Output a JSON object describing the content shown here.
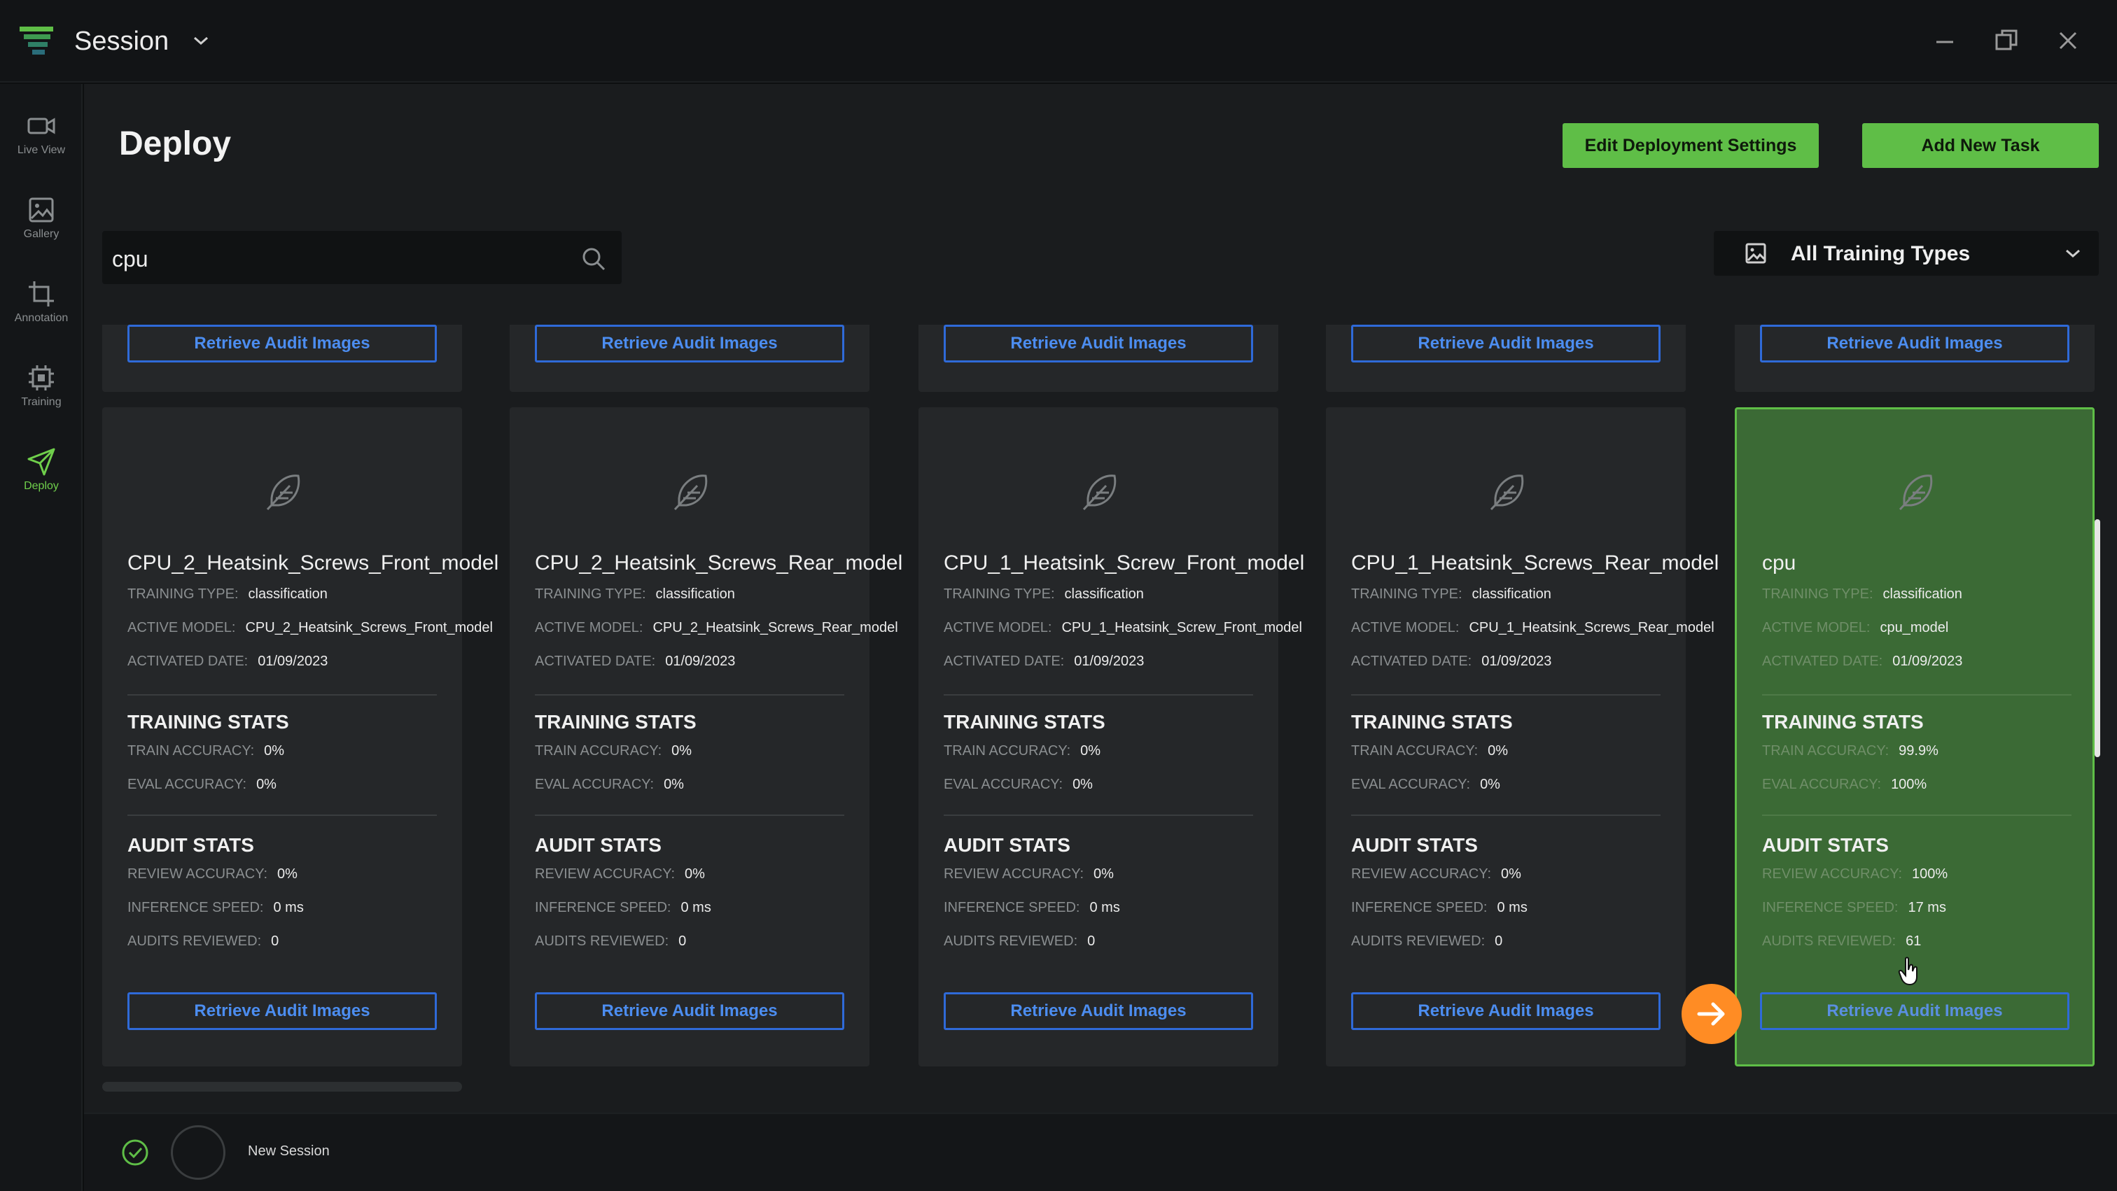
{
  "window": {
    "title": "Session"
  },
  "sidebar": {
    "items": [
      {
        "label": "Live View",
        "icon": "video-camera-icon"
      },
      {
        "label": "Gallery",
        "icon": "image-icon"
      },
      {
        "label": "Annotation",
        "icon": "crop-icon"
      },
      {
        "label": "Training",
        "icon": "chip-icon"
      },
      {
        "label": "Deploy",
        "icon": "send-icon",
        "active": true
      }
    ]
  },
  "header": {
    "title": "Deploy",
    "edit_button": "Edit Deployment Settings",
    "add_button": "Add New Task"
  },
  "filters": {
    "search_value": "cpu",
    "training_type": "All Training Types"
  },
  "labels": {
    "training_type": "TRAINING TYPE:",
    "active_model": "ACTIVE MODEL:",
    "activated_date": "ACTIVATED DATE:",
    "training_stats": "TRAINING STATS",
    "train_accuracy": "TRAIN ACCURACY:",
    "eval_accuracy": "EVAL ACCURACY:",
    "audit_stats": "AUDIT STATS",
    "review_accuracy": "REVIEW ACCURACY:",
    "inference_speed": "INFERENCE SPEED:",
    "audits_reviewed": "AUDITS REVIEWED:",
    "retrieve_button": "Retrieve Audit Images"
  },
  "cards": [
    {
      "name": "CPU_2_Heatsink_Screws_Front_model",
      "training_type": "classification",
      "active_model": "CPU_2_Heatsink_Screws_Front_model",
      "activated_date": "01/09/2023",
      "train_accuracy": "0%",
      "eval_accuracy": "0%",
      "review_accuracy": "0%",
      "inference_speed": "0 ms",
      "audits_reviewed": "0"
    },
    {
      "name": "CPU_2_Heatsink_Screws_Rear_model",
      "training_type": "classification",
      "active_model": "CPU_2_Heatsink_Screws_Rear_model",
      "activated_date": "01/09/2023",
      "train_accuracy": "0%",
      "eval_accuracy": "0%",
      "review_accuracy": "0%",
      "inference_speed": "0 ms",
      "audits_reviewed": "0"
    },
    {
      "name": "CPU_1_Heatsink_Screw_Front_model",
      "training_type": "classification",
      "active_model": "CPU_1_Heatsink_Screw_Front_model",
      "activated_date": "01/09/2023",
      "train_accuracy": "0%",
      "eval_accuracy": "0%",
      "review_accuracy": "0%",
      "inference_speed": "0 ms",
      "audits_reviewed": "0"
    },
    {
      "name": "CPU_1_Heatsink_Screws_Rear_model",
      "training_type": "classification",
      "active_model": "CPU_1_Heatsink_Screws_Rear_model",
      "activated_date": "01/09/2023",
      "train_accuracy": "0%",
      "eval_accuracy": "0%",
      "review_accuracy": "0%",
      "inference_speed": "0 ms",
      "audits_reviewed": "0"
    },
    {
      "name": "cpu",
      "training_type": "classification",
      "active_model": "cpu_model",
      "activated_date": "01/09/2023",
      "train_accuracy": "99.9%",
      "eval_accuracy": "100%",
      "review_accuracy": "100%",
      "inference_speed": "17 ms",
      "audits_reviewed": "61",
      "selected": true
    }
  ],
  "status_bar": {
    "session_label": "New Session"
  },
  "colors": {
    "accent_green": "#5fbe47",
    "link_blue": "#2f6ad8",
    "highlight_orange": "#ff8c24",
    "selected_card": "#3b6a35"
  }
}
